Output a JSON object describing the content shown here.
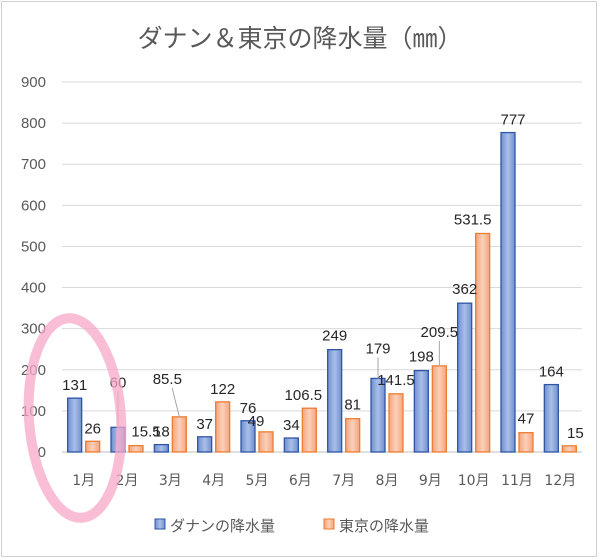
{
  "chart_data": {
    "type": "bar",
    "title": "ダナン＆東京の降水量（㎜）",
    "categories": [
      "1月",
      "2月",
      "3月",
      "4月",
      "5月",
      "6月",
      "7月",
      "8月",
      "9月",
      "10月",
      "11月",
      "12月"
    ],
    "series": [
      {
        "name": "ダナンの降水量",
        "values": [
          131,
          60,
          18,
          37,
          76,
          34,
          249,
          179,
          198,
          362,
          777,
          164
        ],
        "labels": [
          "131",
          "60",
          "18",
          "37",
          "76",
          "34",
          "249",
          "179",
          "198",
          "362",
          "777",
          "164"
        ]
      },
      {
        "name": "東京の降水量",
        "values": [
          26,
          15.5,
          85.5,
          122,
          49,
          106.5,
          81,
          141.5,
          209.5,
          531.5,
          47,
          15
        ],
        "labels": [
          "26",
          "15.5",
          "85.5",
          "122",
          "49",
          "106.5",
          "81",
          "141.5",
          "209.5",
          "531.5",
          "47",
          "15"
        ]
      }
    ],
    "yticks": [
      "0",
      "100",
      "200",
      "300",
      "400",
      "500",
      "600",
      "700",
      "800",
      "900"
    ],
    "ylim": [
      0,
      900
    ],
    "grid": true,
    "legend": "bottom",
    "colors": {
      "series1_fill": "#8EA9DB",
      "series1_stroke": "#2F55A4",
      "series2_fill": "#F8B99A",
      "series2_stroke": "#ED7D31",
      "highlight": "#F7A8C8"
    }
  }
}
